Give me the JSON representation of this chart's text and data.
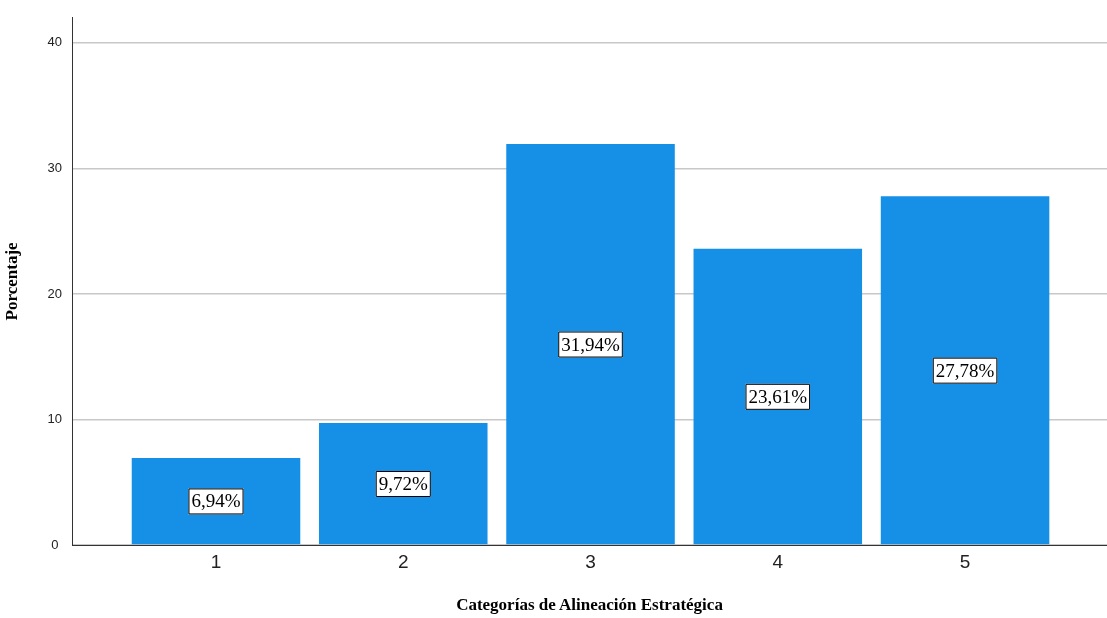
{
  "chart_data": {
    "type": "bar",
    "xlabel": "Categorías de Alineación Estratégica",
    "ylabel": "Porcentaje",
    "categories": [
      "1",
      "2",
      "3",
      "4",
      "5"
    ],
    "values": [
      6.94,
      9.72,
      31.94,
      23.61,
      27.78
    ],
    "value_labels": [
      "6,94%",
      "9,72%",
      "31,94%",
      "23,61%",
      "27,78%"
    ],
    "color": "#1590e6",
    "ylim": [
      0,
      42
    ],
    "yticks": [
      0,
      10,
      20,
      30,
      40
    ],
    "grid": "y",
    "legend": false
  }
}
